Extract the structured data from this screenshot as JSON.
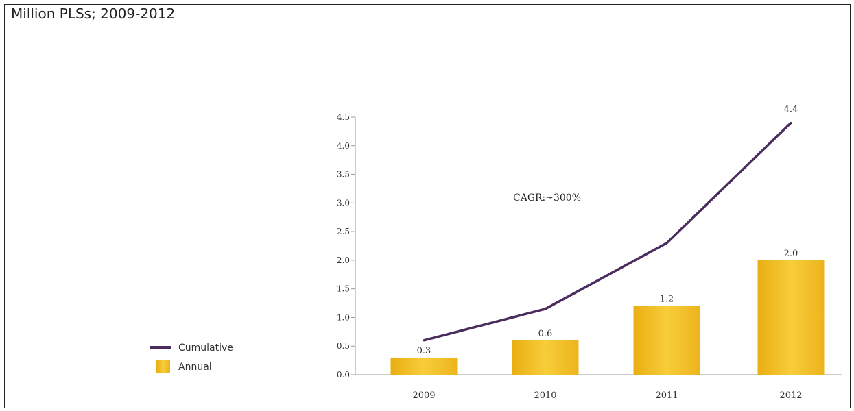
{
  "title": "Million PLSs; 2009-2012",
  "chart_data": {
    "type": "bar",
    "categories": [
      "2009",
      "2010",
      "2011",
      "2012"
    ],
    "series": [
      {
        "name": "Annual",
        "type": "bar",
        "values": [
          0.3,
          0.6,
          1.2,
          2.0
        ],
        "color": "#F2BF24"
      },
      {
        "name": "Cumulative",
        "type": "line",
        "values": [
          0.6,
          1.15,
          2.3,
          4.4
        ],
        "color": "#4B2C5E"
      }
    ],
    "bar_labels": [
      "0.3",
      "0.6",
      "1.2",
      "2.0"
    ],
    "line_end_label": "4.4",
    "annotation": "CAGR:~300%",
    "ylim": [
      0,
      4.5
    ],
    "yticks": [
      "0.0",
      "0.5",
      "1.0",
      "1.5",
      "2.0",
      "2.5",
      "3.0",
      "3.5",
      "4.0",
      "4.5"
    ],
    "grid": false,
    "legend_position": "bottom-left"
  }
}
